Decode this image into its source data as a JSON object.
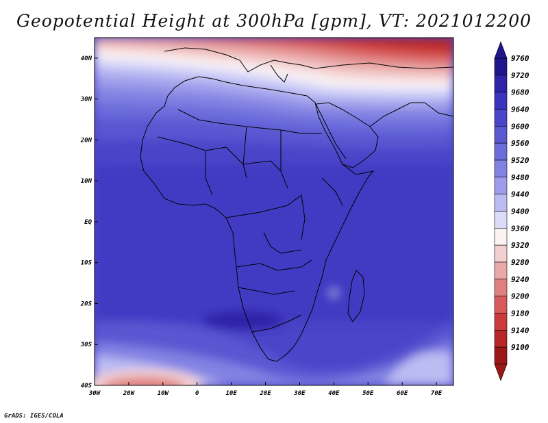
{
  "title": "Geopotential Height at 300hPa [gpm], VT: 2021012200",
  "credit": "GrADS: IGES/COLA",
  "map": {
    "variable": "Geopotential Height",
    "level": "300hPa",
    "units": "gpm",
    "valid_time": "2021012200",
    "lon_range": [
      -30,
      75
    ],
    "lat_range": [
      -40,
      45
    ],
    "lon_ticks": [
      "30W",
      "20W",
      "10W",
      "0",
      "10E",
      "20E",
      "30E",
      "40E",
      "50E",
      "60E",
      "70E"
    ],
    "lat_ticks": [
      "40N",
      "30N",
      "20N",
      "10N",
      "EQ",
      "10S",
      "20S",
      "30S",
      "40S"
    ]
  },
  "colorbar": {
    "labels": [
      "9760",
      "9720",
      "9680",
      "9640",
      "9600",
      "9560",
      "9520",
      "9480",
      "9440",
      "9400",
      "9360",
      "9320",
      "9280",
      "9240",
      "9200",
      "9180",
      "9140",
      "9100"
    ],
    "colors": [
      "#1f158c",
      "#2e24a8",
      "#3b33bc",
      "#4a45c9",
      "#5a57d2",
      "#6c6cdb",
      "#8282e3",
      "#9d9deb",
      "#bcbcf3",
      "#dcdcfa",
      "#fbf2f2",
      "#f3cfcf",
      "#eaa9a9",
      "#e07f7f",
      "#d85a5a",
      "#cc3b3b",
      "#b72626",
      "#9c1717"
    ]
  }
}
